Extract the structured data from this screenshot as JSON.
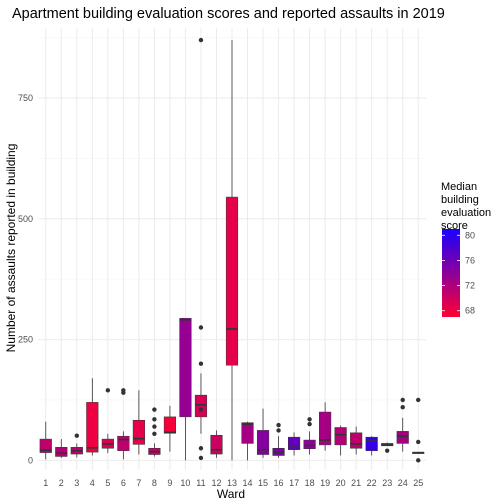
{
  "chart_data": {
    "type": "boxplot",
    "title": "Apartment building evaluation scores and reported assaults in 2019",
    "xlabel": "Ward",
    "ylabel": "Number of assaults reported in building",
    "yticks": [
      0,
      250,
      500,
      750
    ],
    "ylim": [
      -20,
      895
    ],
    "grid": true,
    "legend": {
      "title_lines": [
        "Median",
        "building",
        "evaluation",
        "score"
      ],
      "ticks": [
        68,
        72,
        76,
        80
      ],
      "range": [
        67,
        81
      ],
      "color_low": "#ff0033",
      "color_high": "#1a00ff",
      "placement": "right"
    },
    "boxes": [
      {
        "ward": "1",
        "min": 2,
        "q1": 16,
        "median": 21,
        "q3": 44,
        "max": 80,
        "outliers": [],
        "score": 71.0
      },
      {
        "ward": "2",
        "min": 5,
        "q1": 8,
        "median": 15,
        "q3": 27,
        "max": 44,
        "outliers": [],
        "score": 71.5
      },
      {
        "ward": "3",
        "min": 6,
        "q1": 13,
        "median": 20,
        "q3": 27,
        "max": 35,
        "outliers": [
          51
        ],
        "score": 71.0
      },
      {
        "ward": "4",
        "min": 10,
        "q1": 17,
        "median": 26,
        "q3": 120,
        "max": 170,
        "outliers": [],
        "score": 68.0
      },
      {
        "ward": "5",
        "min": 15,
        "q1": 25,
        "median": 34,
        "q3": 44,
        "max": 55,
        "outliers": [
          145
        ],
        "score": 69.0
      },
      {
        "ward": "6",
        "min": 2,
        "q1": 20,
        "median": 43,
        "q3": 50,
        "max": 60,
        "outliers": [
          140,
          145
        ],
        "score": 71.0
      },
      {
        "ward": "7",
        "min": 12,
        "q1": 33,
        "median": 45,
        "q3": 83,
        "max": 145,
        "outliers": [],
        "score": 68.5
      },
      {
        "ward": "8",
        "min": 8,
        "q1": 12,
        "median": 18,
        "q3": 25,
        "max": 35,
        "outliers": [
          55,
          70,
          85,
          105
        ],
        "score": 70.5
      },
      {
        "ward": "9",
        "min": 18,
        "q1": 56,
        "median": 58,
        "q3": 90,
        "max": 113,
        "outliers": [],
        "score": 67.5
      },
      {
        "ward": "10",
        "min": 0,
        "q1": 90,
        "median": 291,
        "q3": 294,
        "max": 294,
        "outliers": [],
        "score": 73.5
      },
      {
        "ward": "11",
        "min": 55,
        "q1": 90,
        "median": 115,
        "q3": 135,
        "max": 180,
        "outliers": [
          870,
          275,
          200,
          105,
          25,
          5
        ],
        "score": 69.5
      },
      {
        "ward": "12",
        "min": 5,
        "q1": 13,
        "median": 22,
        "q3": 52,
        "max": 62,
        "outliers": [],
        "score": 70.0
      },
      {
        "ward": "13",
        "min": 0,
        "q1": 197,
        "median": 272,
        "q3": 545,
        "max": 870,
        "outliers": [],
        "score": 68.5
      },
      {
        "ward": "14",
        "min": 0,
        "q1": 35,
        "median": 75,
        "q3": 78,
        "max": 80,
        "outliers": [],
        "score": 72.5
      },
      {
        "ward": "15",
        "min": 5,
        "q1": 12,
        "median": 22,
        "q3": 62,
        "max": 107,
        "outliers": [],
        "score": 74.5
      },
      {
        "ward": "16",
        "min": 5,
        "q1": 10,
        "median": 17,
        "q3": 25,
        "max": 50,
        "outliers": [
          62,
          73
        ],
        "score": 75.0
      },
      {
        "ward": "17",
        "min": 10,
        "q1": 22,
        "median": 27,
        "q3": 48,
        "max": 58,
        "outliers": [],
        "score": 76.5
      },
      {
        "ward": "18",
        "min": 12,
        "q1": 24,
        "median": 31,
        "q3": 42,
        "max": 60,
        "outliers": [
          75,
          85
        ],
        "score": 74.0
      },
      {
        "ward": "19",
        "min": 20,
        "q1": 32,
        "median": 42,
        "q3": 100,
        "max": 120,
        "outliers": [],
        "score": 72.5
      },
      {
        "ward": "20",
        "min": 10,
        "q1": 32,
        "median": 53,
        "q3": 68,
        "max": 72,
        "outliers": [],
        "score": 71.5
      },
      {
        "ward": "21",
        "min": 12,
        "q1": 25,
        "median": 34,
        "q3": 57,
        "max": 70,
        "outliers": [],
        "score": 71.0
      },
      {
        "ward": "22",
        "min": 10,
        "q1": 20,
        "median": 40,
        "q3": 48,
        "max": 50,
        "outliers": [],
        "score": 79.5
      },
      {
        "ward": "23",
        "min": 30,
        "q1": 30,
        "median": 33,
        "q3": 35,
        "max": 37,
        "outliers": [
          20
        ],
        "score": 77.0
      },
      {
        "ward": "24",
        "min": 18,
        "q1": 35,
        "median": 50,
        "q3": 60,
        "max": 88,
        "outliers": [
          110,
          125
        ],
        "score": 72.5
      },
      {
        "ward": "25",
        "min": 15,
        "q1": 15,
        "median": 16,
        "q3": 16,
        "max": 17,
        "outliers": [
          125,
          38,
          0
        ],
        "score": 77.0
      }
    ]
  }
}
